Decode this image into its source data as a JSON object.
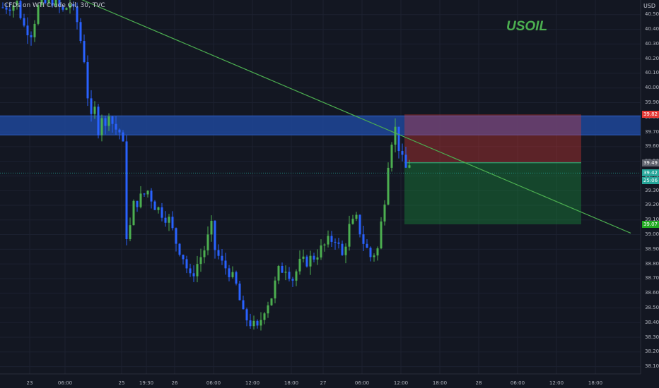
{
  "header": {
    "instrument": "CFDs on WTI Crude Oil, 30, TVC",
    "currency": "USD"
  },
  "annotation": {
    "text": "USOIL",
    "color": "#4caf50"
  },
  "chart_data": {
    "type": "candlestick",
    "title": "CFDs on WTI Crude Oil, 30, TVC",
    "ylim": [
      38.05,
      40.6
    ],
    "y_ticks": [
      40.5,
      40.4,
      40.3,
      40.2,
      40.1,
      40.0,
      39.9,
      39.8,
      39.7,
      39.6,
      39.5,
      39.4,
      39.3,
      39.2,
      39.1,
      39.0,
      38.9,
      38.8,
      38.7,
      38.6,
      38.5,
      38.4,
      38.3,
      38.2,
      38.1
    ],
    "y_tick_labels": [
      "40.50",
      "40.40",
      "40.30",
      "40.20",
      "40.10",
      "40.00",
      "39.90",
      "39.80",
      "39.70",
      "39.60",
      "39.50",
      "39.40",
      "39.30",
      "39.20",
      "39.10",
      "39.00",
      "38.90",
      "38.80",
      "38.70",
      "38.60",
      "38.50",
      "38.40",
      "38.30",
      "38.20",
      "38.10"
    ],
    "x_tick_labels": [
      "23",
      "06:00",
      "25",
      "19:30",
      "26",
      "06:00",
      "12:00",
      "18:00",
      "27",
      "06:00",
      "12:00",
      "18:00",
      "28",
      "06:00",
      "12:00",
      "18:00"
    ],
    "x_tick_bars": [
      8,
      18,
      34,
      41,
      49,
      60,
      71,
      82,
      91,
      102,
      113,
      124,
      135,
      146,
      157,
      168
    ],
    "total_bars": 180,
    "close_path": [
      [
        0,
        40.55
      ],
      [
        4,
        40.58
      ],
      [
        6,
        40.42
      ],
      [
        8,
        40.38
      ],
      [
        10,
        40.55
      ],
      [
        14,
        40.6
      ],
      [
        17,
        40.52
      ],
      [
        19,
        40.58
      ],
      [
        21,
        40.45
      ],
      [
        23,
        40.2
      ],
      [
        24,
        39.95
      ],
      [
        25,
        39.78
      ],
      [
        26,
        39.85
      ],
      [
        27,
        39.72
      ],
      [
        28,
        39.82
      ],
      [
        29,
        39.72
      ],
      [
        30,
        39.85
      ],
      [
        31,
        39.76
      ],
      [
        32,
        39.72
      ],
      [
        33,
        39.7
      ],
      [
        34,
        39.6
      ],
      [
        35,
        39.0
      ],
      [
        36,
        39.05
      ],
      [
        37,
        39.2
      ],
      [
        39,
        39.25
      ],
      [
        41,
        39.3
      ],
      [
        43,
        39.2
      ],
      [
        45,
        39.15
      ],
      [
        47,
        39.1
      ],
      [
        49,
        38.95
      ],
      [
        51,
        38.85
      ],
      [
        53,
        38.7
      ],
      [
        55,
        38.8
      ],
      [
        57,
        38.9
      ],
      [
        59,
        39.05
      ],
      [
        60,
        38.9
      ],
      [
        62,
        38.8
      ],
      [
        64,
        38.75
      ],
      [
        66,
        38.65
      ],
      [
        68,
        38.45
      ],
      [
        70,
        38.4
      ],
      [
        72,
        38.35
      ],
      [
        74,
        38.5
      ],
      [
        76,
        38.58
      ],
      [
        78,
        38.75
      ],
      [
        80,
        38.78
      ],
      [
        82,
        38.7
      ],
      [
        84,
        38.8
      ],
      [
        86,
        38.82
      ],
      [
        88,
        38.85
      ],
      [
        90,
        38.9
      ],
      [
        92,
        38.95
      ],
      [
        94,
        38.98
      ],
      [
        96,
        38.85
      ],
      [
        98,
        39.05
      ],
      [
        100,
        39.1
      ],
      [
        102,
        38.95
      ],
      [
        104,
        38.85
      ],
      [
        106,
        38.9
      ],
      [
        108,
        39.25
      ],
      [
        109,
        39.5
      ],
      [
        110,
        39.65
      ],
      [
        111,
        39.72
      ],
      [
        112,
        39.6
      ],
      [
        113,
        39.5
      ],
      [
        114,
        39.45
      ],
      [
        115,
        39.49
      ]
    ],
    "last_price": 39.42,
    "countdown": "25:06",
    "position": {
      "entry": 39.49,
      "stop": 39.82,
      "target": 39.07,
      "start_bar": 114,
      "end_bar": 164
    },
    "resistance_zone": {
      "low": 39.68,
      "high": 39.81
    },
    "trendline": [
      [
        -18,
        41.02
      ],
      [
        178,
        39.01
      ]
    ],
    "price_badges": [
      {
        "value": "39.82",
        "color": "#e53935"
      },
      {
        "value": "39.49",
        "color": "#5d606b"
      },
      {
        "value": "39.42",
        "color": "#26a69a"
      },
      {
        "value": "25:06",
        "color": "#26a69a"
      },
      {
        "value": "39.07",
        "color": "#22ab22"
      }
    ],
    "colors": {
      "up": "#4caf50",
      "down": "#2962ff",
      "background": "#131722",
      "zone": "#1e4799",
      "stop_zone": "#5e1721",
      "target_zone": "#0f4a1e",
      "trendline": "#4caf50"
    }
  }
}
